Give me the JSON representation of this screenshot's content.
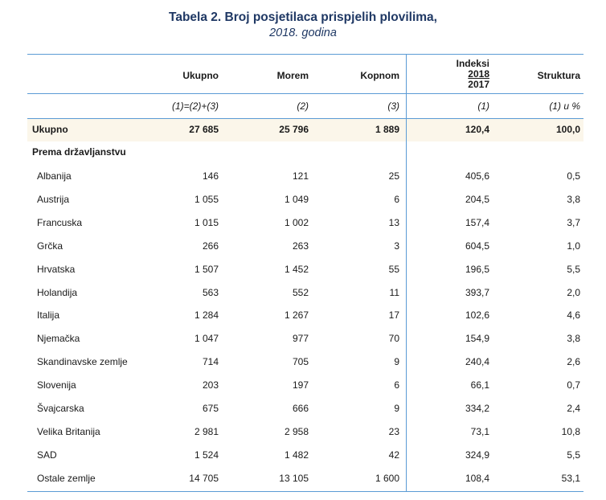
{
  "title": "Tabela 2. Broj posjetilaca prispjelih plovilima,",
  "subtitle": "2018. godina",
  "headers": {
    "ukupno": "Ukupno",
    "morem": "Morem",
    "kopnom": "Kopnom",
    "indeksi": "Indeksi",
    "index_top": "2018",
    "index_bottom": "2017",
    "struktura": "Struktura"
  },
  "formula_row": [
    "(1)=(2)+(3)",
    "(2)",
    "(3)",
    "(1)",
    "(1) u %"
  ],
  "total_row": {
    "label": "Ukupno",
    "values": [
      "27 685",
      "25 796",
      "1 889",
      "120,4",
      "100,0"
    ]
  },
  "section_label": "Prema državljanstvu",
  "rows": [
    {
      "label": "Albanija",
      "values": [
        "146",
        "121",
        "25",
        "405,6",
        "0,5"
      ]
    },
    {
      "label": "Austrija",
      "values": [
        "1 055",
        "1 049",
        "6",
        "204,5",
        "3,8"
      ]
    },
    {
      "label": "Francuska",
      "values": [
        "1 015",
        "1 002",
        "13",
        "157,4",
        "3,7"
      ]
    },
    {
      "label": "Grčka",
      "values": [
        "266",
        "263",
        "3",
        "604,5",
        "1,0"
      ]
    },
    {
      "label": "Hrvatska",
      "values": [
        "1 507",
        "1 452",
        "55",
        "196,5",
        "5,5"
      ]
    },
    {
      "label": "Holandija",
      "values": [
        "563",
        "552",
        "11",
        "393,7",
        "2,0"
      ]
    },
    {
      "label": "Italija",
      "values": [
        "1 284",
        "1 267",
        "17",
        "102,6",
        "4,6"
      ]
    },
    {
      "label": "Njemačka",
      "values": [
        "1 047",
        "977",
        "70",
        "154,9",
        "3,8"
      ]
    },
    {
      "label": "Skandinavske zemlje",
      "values": [
        "714",
        "705",
        "9",
        "240,4",
        "2,6"
      ]
    },
    {
      "label": "Slovenija",
      "values": [
        "203",
        "197",
        "6",
        "66,1",
        "0,7"
      ]
    },
    {
      "label": "Švajcarska",
      "values": [
        "675",
        "666",
        "9",
        "334,2",
        "2,4"
      ]
    },
    {
      "label": "Velika Britanija",
      "values": [
        "2 981",
        "2 958",
        "23",
        "73,1",
        "10,8"
      ]
    },
    {
      "label": "SAD",
      "values": [
        "1 524",
        "1 482",
        "42",
        "324,9",
        "5,5"
      ]
    },
    {
      "label": "Ostale zemlje",
      "values": [
        "14 705",
        "13 105",
        "1 600",
        "108,4",
        "53,1"
      ]
    }
  ]
}
